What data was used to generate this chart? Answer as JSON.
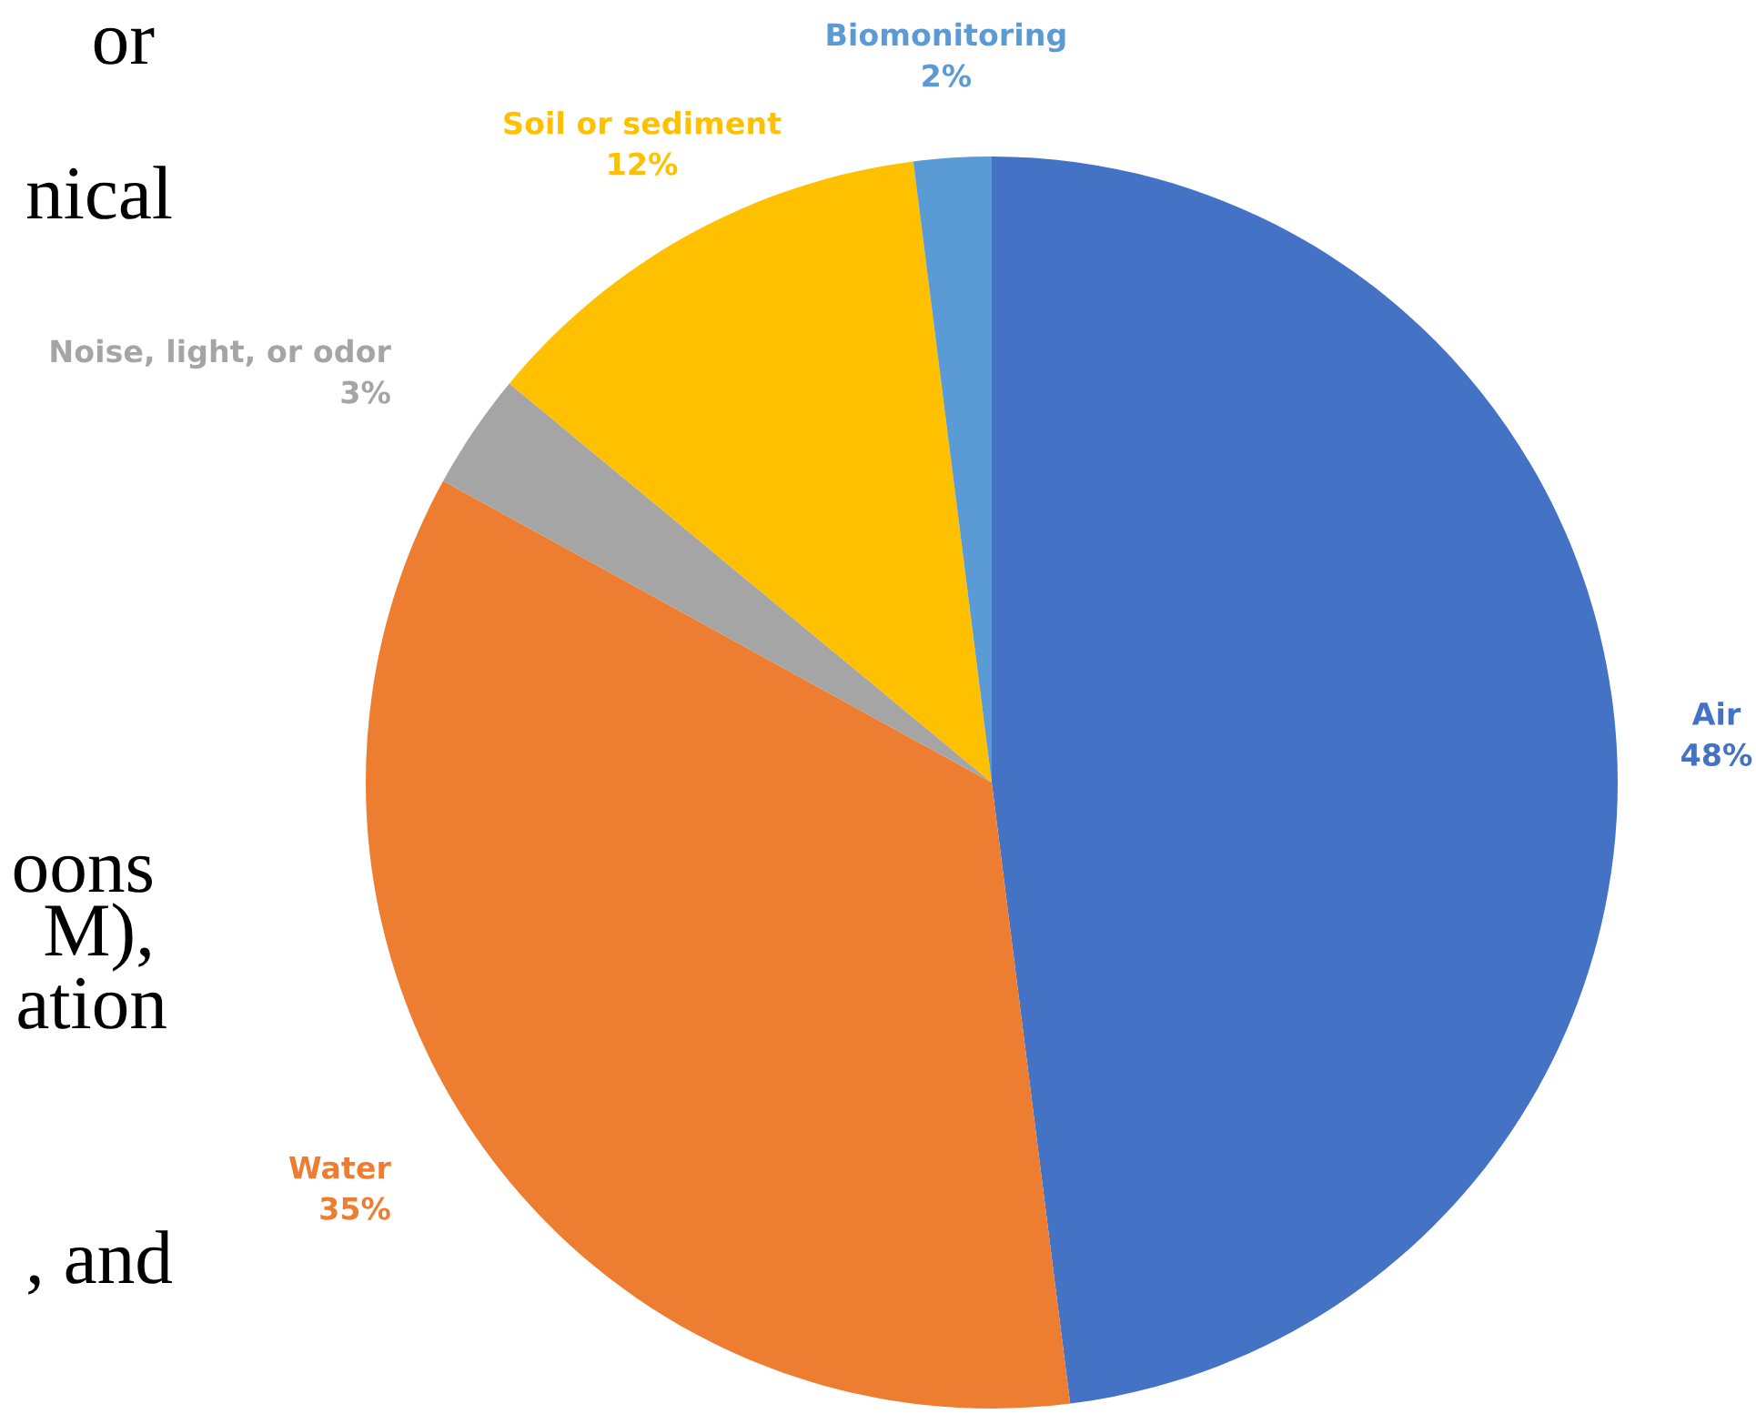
{
  "chart_data": {
    "type": "pie",
    "categories": [
      "Air",
      "Water",
      "Noise, light, or odor",
      "Soil or sediment",
      "Biomonitoring"
    ],
    "values": [
      48,
      35,
      3,
      12,
      2
    ],
    "colors": [
      "#4472c4",
      "#ed7d31",
      "#a5a5a5",
      "#ffc000",
      "#5b9bd5"
    ],
    "value_labels": [
      "48%",
      "35%",
      "3%",
      "12%",
      "2%"
    ],
    "annotations": [
      "or",
      "nical",
      "oons",
      "M),",
      "ation",
      ", and"
    ]
  }
}
